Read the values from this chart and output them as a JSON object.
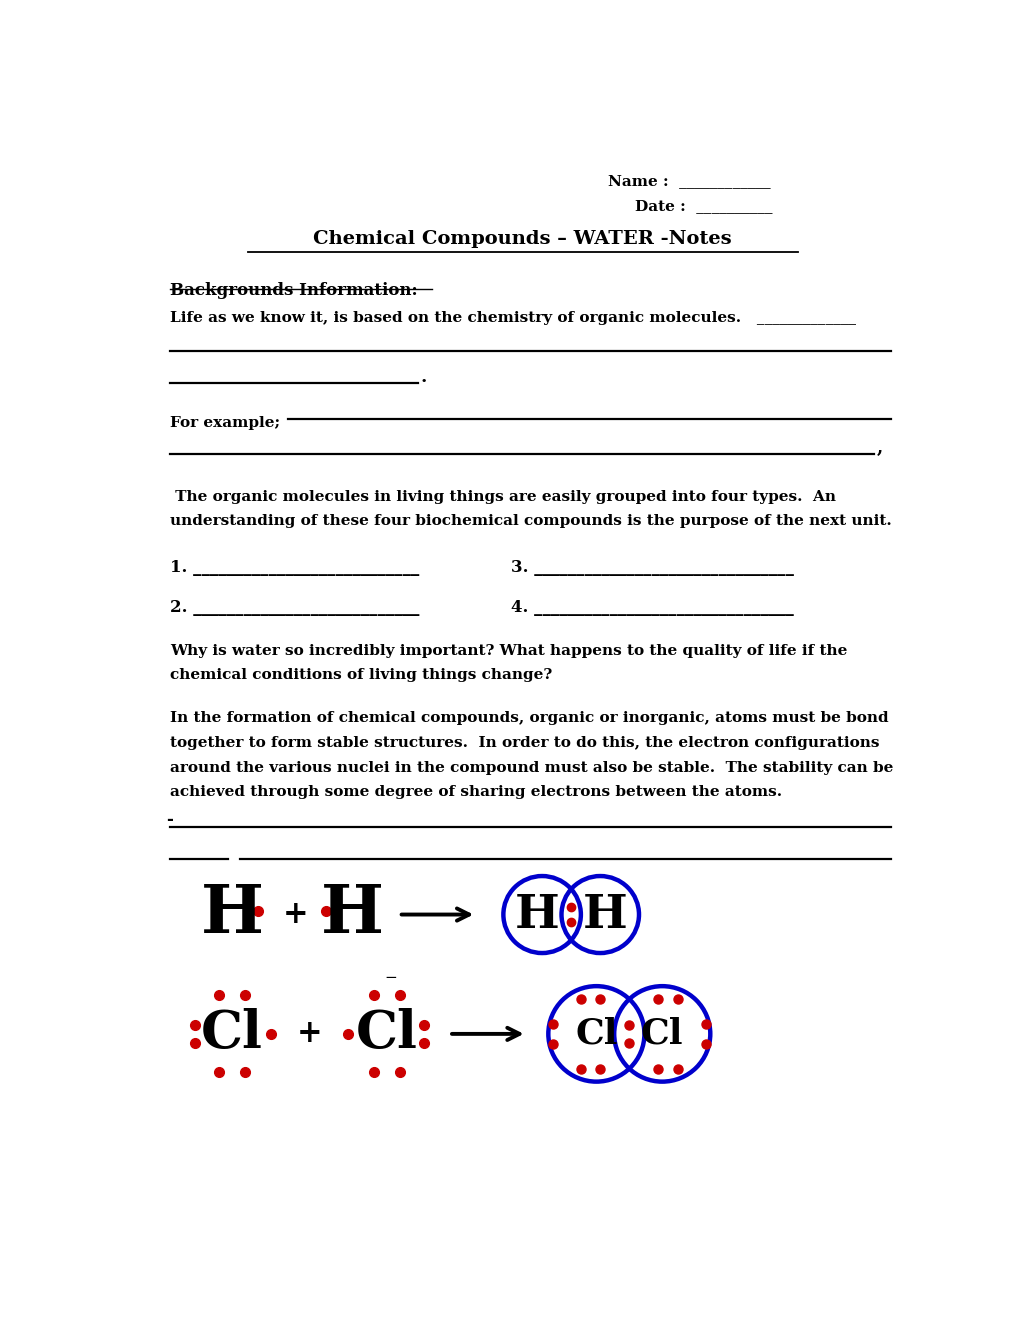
{
  "bg_color": "#ffffff",
  "title": "Chemical Compounds – WATER -Notes",
  "dot_color": "#cc0000",
  "circle_color": "#0000cc",
  "text_color": "#000000",
  "font_family": "DejaVu Serif",
  "name_line": "Name :  ____________",
  "date_line": "Date :  __________",
  "section_header": "Backgrounds Information:",
  "line1": "Life as we know it, is based on the chemistry of organic molecules.   _____________",
  "for_example": "For example;",
  "para1_line1": " The organic molecules in living things are easily grouped into four types.  An",
  "para1_line2": "understanding of these four biochemical compounds is the purpose of the next unit.",
  "item1": "1. ___________________________",
  "item2": "2. ___________________________",
  "item3": "3. _______________________________",
  "item4": "4. _______________________________",
  "para2_line1": "Why is water so incredibly important? What happens to the quality of life if the",
  "para2_line2": "chemical conditions of living things change?",
  "para3_line1": "In the formation of chemical compounds, organic or inorganic, atoms must be bond",
  "para3_line2": "together to form stable structures.  In order to do this, the electron configurations",
  "para3_line3": "around the various nuclei in the compound must also be stable.  The stability can be",
  "para3_line4": "achieved through some degree of sharing electrons between the atoms."
}
